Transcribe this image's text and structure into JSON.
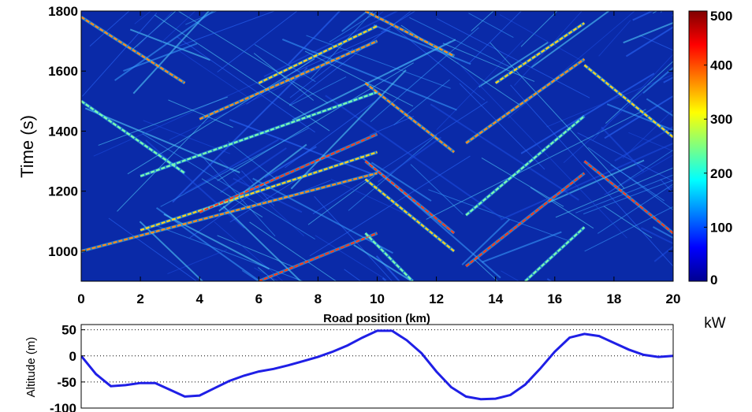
{
  "chart_data": [
    {
      "type": "heatmap",
      "title": "",
      "xlabel": "Road position (km)",
      "ylabel": "Time (s)",
      "xlim": [
        0,
        20
      ],
      "ylim": [
        900,
        1800
      ],
      "xticks": [
        "0",
        "2",
        "4",
        "6",
        "8",
        "10",
        "12",
        "14",
        "16",
        "18",
        "20"
      ],
      "yticks": [
        "1000",
        "1200",
        "1400",
        "1600",
        "1800"
      ],
      "colorbar": {
        "label": "kW",
        "range": [
          0,
          500
        ],
        "ticks": [
          "0",
          "100",
          "200",
          "300",
          "400",
          "500"
        ],
        "colormap": "jet"
      },
      "features": {
        "description_free": true,
        "trajectories_uphill": [
          {
            "x": [
              0,
              10
            ],
            "t": [
              1000,
              1260
            ]
          },
          {
            "x": [
              2,
              10
            ],
            "t": [
              1070,
              1330
            ]
          },
          {
            "x": [
              4,
              10
            ],
            "t": [
              1130,
              1390
            ]
          },
          {
            "x": [
              2,
              10
            ],
            "t": [
              1250,
              1530
            ]
          },
          {
            "x": [
              4,
              10
            ],
            "t": [
              1440,
              1700
            ]
          },
          {
            "x": [
              6,
              10
            ],
            "t": [
              1560,
              1750
            ]
          },
          {
            "x": [
              13,
              17
            ],
            "t": [
              950,
              1260
            ]
          },
          {
            "x": [
              13,
              17
            ],
            "t": [
              1120,
              1450
            ]
          },
          {
            "x": [
              13,
              17
            ],
            "t": [
              1360,
              1640
            ]
          },
          {
            "x": [
              14,
              17
            ],
            "t": [
              1560,
              1760
            ]
          },
          {
            "x": [
              6,
              10
            ],
            "t": [
              900,
              1060
            ]
          },
          {
            "x": [
              15,
              17
            ],
            "t": [
              900,
              1080
            ]
          }
        ],
        "trajectories_downhill": [
          {
            "x": [
              9.6,
              12.6
            ],
            "t": [
              1560,
              1330
            ]
          },
          {
            "x": [
              9.6,
              12.6
            ],
            "t": [
              1240,
              1000
            ]
          },
          {
            "x": [
              9.6,
              12.6
            ],
            "t": [
              1300,
              1060
            ]
          },
          {
            "x": [
              9.6,
              11.2
            ],
            "t": [
              1060,
              900
            ]
          },
          {
            "x": [
              9.6,
              12.6
            ],
            "t": [
              1800,
              1650
            ]
          },
          {
            "x": [
              17,
              20
            ],
            "t": [
              1620,
              1380
            ]
          },
          {
            "x": [
              17,
              20
            ],
            "t": [
              1300,
              1060
            ]
          },
          {
            "x": [
              0,
              3.5
            ],
            "t": [
              1500,
              1260
            ]
          },
          {
            "x": [
              0,
              3.5
            ],
            "t": [
              1780,
              1560
            ]
          }
        ]
      }
    },
    {
      "type": "line",
      "title": "",
      "xlabel": "",
      "ylabel": "Altitude (m)",
      "xlim": [
        0,
        20
      ],
      "ylim": [
        -100,
        60
      ],
      "yticks": [
        "50",
        "0",
        "-50",
        "-100"
      ],
      "grid": "dotted at 50, 0, -50",
      "color": "#1f1fe6",
      "x": [
        0,
        0.5,
        1,
        1.5,
        2,
        2.5,
        3,
        3.5,
        4,
        4.5,
        5,
        5.5,
        6,
        6.5,
        7,
        7.5,
        8,
        8.5,
        9,
        9.5,
        10,
        10.5,
        11,
        11.5,
        12,
        12.5,
        13,
        13.5,
        14,
        14.5,
        15,
        15.5,
        16,
        16.5,
        17,
        17.5,
        18,
        18.5,
        19,
        19.5,
        20
      ],
      "values": [
        0,
        -35,
        -58,
        -56,
        -52,
        -52,
        -65,
        -78,
        -76,
        -62,
        -48,
        -38,
        -30,
        -25,
        -18,
        -10,
        -2,
        8,
        20,
        35,
        48,
        48,
        30,
        5,
        -30,
        -60,
        -78,
        -83,
        -82,
        -75,
        -55,
        -25,
        8,
        35,
        42,
        38,
        25,
        12,
        2,
        -2,
        0
      ]
    }
  ]
}
